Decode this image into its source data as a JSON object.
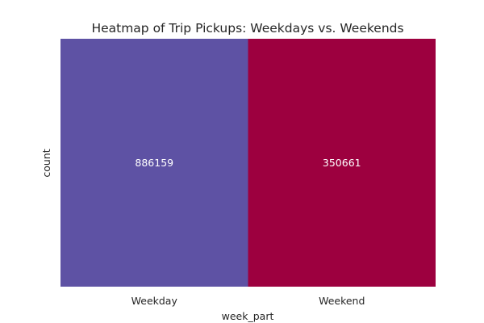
{
  "chart_data": {
    "type": "heatmap",
    "title": "Heatmap of Trip Pickups: Weekdays vs. Weekends",
    "xlabel": "week_part",
    "ylabel": "count",
    "x": [
      "Weekday",
      "Weekend"
    ],
    "y": [
      ""
    ],
    "values": [
      [
        886159,
        350661
      ]
    ],
    "annotations": [
      "886159",
      "350661"
    ],
    "colormap": "Spectral_r",
    "colors": [
      "#5e52a4",
      "#9d003f"
    ],
    "grid": false,
    "colorbar": false
  }
}
